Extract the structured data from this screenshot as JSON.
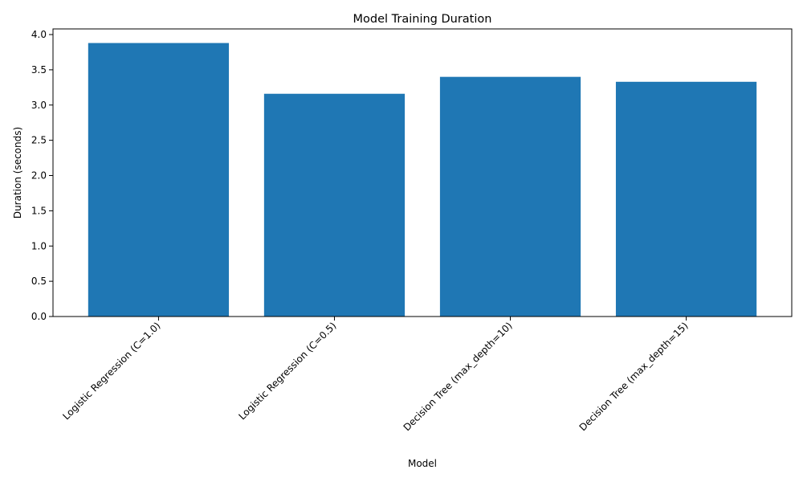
{
  "chart_data": {
    "type": "bar",
    "title": "Model Training Duration",
    "xlabel": "Model",
    "ylabel": "Duration (seconds)",
    "categories": [
      "Logistic Regression (C=1.0)",
      "Logistic Regression (C=0.5)",
      "Decision Tree (max_depth=10)",
      "Decision Tree (max_depth=15)"
    ],
    "values": [
      3.88,
      3.16,
      3.4,
      3.33
    ],
    "ylim": [
      0,
      4.08
    ],
    "yticks": [
      0.0,
      0.5,
      1.0,
      1.5,
      2.0,
      2.5,
      3.0,
      3.5,
      4.0
    ],
    "ytick_labels": [
      "0.0",
      "0.5",
      "1.0",
      "1.5",
      "2.0",
      "2.5",
      "3.0",
      "3.5",
      "4.0"
    ],
    "grid": false,
    "bar_color": "#1f77b4",
    "xtick_rotation_deg": 45
  }
}
